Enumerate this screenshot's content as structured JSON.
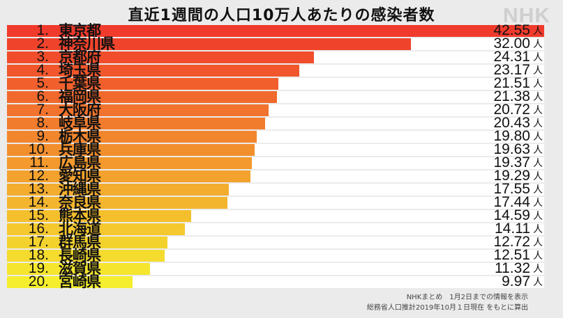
{
  "title": "直近1週間の人口10万人あたりの感染者数",
  "logo": "NHK",
  "unit": "人",
  "notes": [
    "NHKまとめ　1月2日までの情報を表示",
    "総務省人口推計2019年10月１日現在 をもとに算出"
  ],
  "colors": {
    "top": "#f03a2c",
    "bottom": "#f5ee2e",
    "row_bg": "#ffffff",
    "background": "#ebebeb"
  },
  "chart_data": {
    "type": "bar",
    "orientation": "horizontal",
    "title": "直近1週間の人口10万人あたりの感染者数",
    "categories": [
      "東京都",
      "神奈川県",
      "京都府",
      "埼玉県",
      "千葉県",
      "福岡県",
      "大阪府",
      "岐阜県",
      "栃木県",
      "兵庫県",
      "広島県",
      "愛知県",
      "沖縄県",
      "奈良県",
      "熊本県",
      "北海道",
      "群馬県",
      "長崎県",
      "滋賀県",
      "宮崎県"
    ],
    "ranks": [
      "1.",
      "2.",
      "3.",
      "4.",
      "5.",
      "6.",
      "7.",
      "8.",
      "9.",
      "10.",
      "11.",
      "12.",
      "13.",
      "14.",
      "15.",
      "16.",
      "17.",
      "18.",
      "19.",
      "20."
    ],
    "values": [
      42.55,
      32.0,
      24.31,
      23.17,
      21.51,
      21.38,
      20.72,
      20.43,
      19.8,
      19.63,
      19.37,
      19.29,
      17.55,
      17.44,
      14.59,
      14.11,
      12.72,
      12.51,
      11.32,
      9.97
    ],
    "value_labels": [
      "42.55",
      "32.00",
      "24.31",
      "23.17",
      "21.51",
      "21.38",
      "20.72",
      "20.43",
      "19.80",
      "19.63",
      "19.37",
      "19.29",
      "17.55",
      "17.44",
      "14.59",
      "14.11",
      "12.72",
      "12.51",
      "11.32",
      "9.97"
    ],
    "xlim": [
      0,
      42.55
    ]
  }
}
